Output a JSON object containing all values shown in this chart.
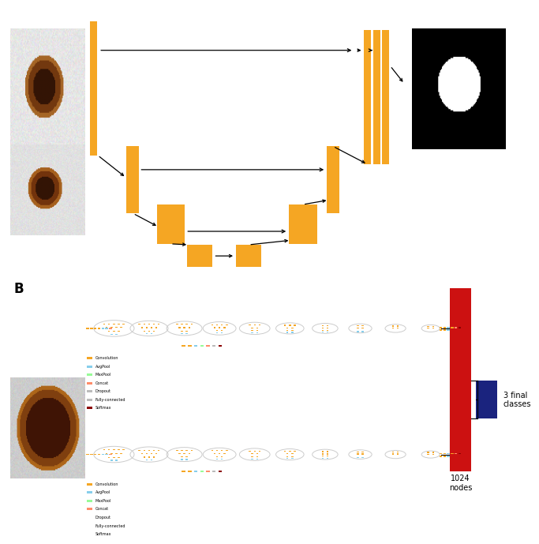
{
  "orange": "#F5A623",
  "red": "#CC1111",
  "blue": "#1A237E",
  "black": "#000000",
  "bg": "#FFFFFF",
  "fig_width": 6.4,
  "fig_height": 6.41,
  "label_B": "B",
  "text_3final": "3 final\nclasses",
  "text_1024": "1024\nnodes",
  "legend_items": [
    "Convolution",
    "AvgPool",
    "MaxPool",
    "Concat",
    "Dropout",
    "Fully-connected",
    "Softmax"
  ],
  "legend_colors": [
    "#F5A623",
    "#87CEEB",
    "#98FB98",
    "#FF8C69",
    "#BBBBBB",
    "#BBBBBB",
    "#8B0000"
  ],
  "node_orange": "#F5A623",
  "node_blue": "#87CEEB",
  "node_green": "#98FB98",
  "node_red": "#FF8C69",
  "node_darkred": "#8B0000",
  "node_gray": "#BBBBBB",
  "node_purple": "#DDA0DD"
}
